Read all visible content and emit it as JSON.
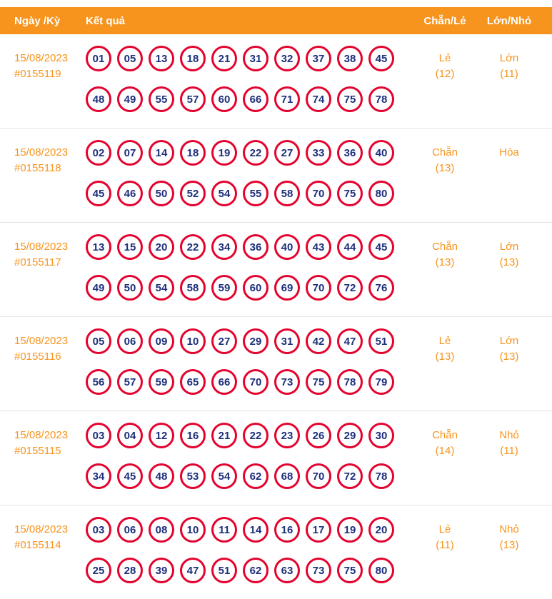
{
  "colors": {
    "accent_orange": "#f7941e",
    "ball_border_red": "#e4032e",
    "ball_number_navy": "#1d2e7c",
    "divider_gray": "#e4e4e4"
  },
  "header": {
    "col_date": "Ngày /Kỳ",
    "col_result": "Kết quả",
    "col_evenodd": "Chẵn/Lẻ",
    "col_bigsmall": "Lớn/Nhỏ"
  },
  "rows": [
    {
      "date": "15/08/2023",
      "period": "#0155119",
      "numbers_row1": [
        "01",
        "05",
        "13",
        "18",
        "21",
        "31",
        "32",
        "37",
        "38",
        "45"
      ],
      "numbers_row2": [
        "48",
        "49",
        "55",
        "57",
        "60",
        "66",
        "71",
        "74",
        "75",
        "78"
      ],
      "evenodd_label": "Lẻ",
      "evenodd_count": "(12)",
      "bigsmall_label": "Lớn",
      "bigsmall_count": "(11)"
    },
    {
      "date": "15/08/2023",
      "period": "#0155118",
      "numbers_row1": [
        "02",
        "07",
        "14",
        "18",
        "19",
        "22",
        "27",
        "33",
        "36",
        "40"
      ],
      "numbers_row2": [
        "45",
        "46",
        "50",
        "52",
        "54",
        "55",
        "58",
        "70",
        "75",
        "80"
      ],
      "evenodd_label": "Chẵn",
      "evenodd_count": "(13)",
      "bigsmall_label": "Hòa",
      "bigsmall_count": ""
    },
    {
      "date": "15/08/2023",
      "period": "#0155117",
      "numbers_row1": [
        "13",
        "15",
        "20",
        "22",
        "34",
        "36",
        "40",
        "43",
        "44",
        "45"
      ],
      "numbers_row2": [
        "49",
        "50",
        "54",
        "58",
        "59",
        "60",
        "69",
        "70",
        "72",
        "76"
      ],
      "evenodd_label": "Chẵn",
      "evenodd_count": "(13)",
      "bigsmall_label": "Lớn",
      "bigsmall_count": "(13)"
    },
    {
      "date": "15/08/2023",
      "period": "#0155116",
      "numbers_row1": [
        "05",
        "06",
        "09",
        "10",
        "27",
        "29",
        "31",
        "42",
        "47",
        "51"
      ],
      "numbers_row2": [
        "56",
        "57",
        "59",
        "65",
        "66",
        "70",
        "73",
        "75",
        "78",
        "79"
      ],
      "evenodd_label": "Lẻ",
      "evenodd_count": "(13)",
      "bigsmall_label": "Lớn",
      "bigsmall_count": "(13)"
    },
    {
      "date": "15/08/2023",
      "period": "#0155115",
      "numbers_row1": [
        "03",
        "04",
        "12",
        "16",
        "21",
        "22",
        "23",
        "26",
        "29",
        "30"
      ],
      "numbers_row2": [
        "34",
        "45",
        "48",
        "53",
        "54",
        "62",
        "68",
        "70",
        "72",
        "78"
      ],
      "evenodd_label": "Chẵn",
      "evenodd_count": "(14)",
      "bigsmall_label": "Nhỏ",
      "bigsmall_count": "(11)"
    },
    {
      "date": "15/08/2023",
      "period": "#0155114",
      "numbers_row1": [
        "03",
        "06",
        "08",
        "10",
        "11",
        "14",
        "16",
        "17",
        "19",
        "20"
      ],
      "numbers_row2": [
        "25",
        "28",
        "39",
        "47",
        "51",
        "62",
        "63",
        "73",
        "75",
        "80"
      ],
      "evenodd_label": "Lẻ",
      "evenodd_count": "(11)",
      "bigsmall_label": "Nhỏ",
      "bigsmall_count": "(13)"
    }
  ]
}
